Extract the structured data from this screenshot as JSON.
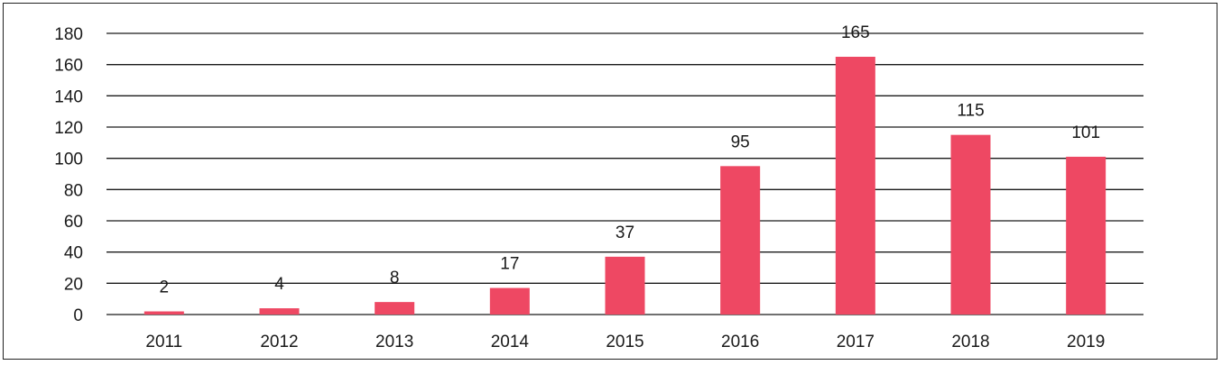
{
  "chart_data": {
    "type": "bar",
    "title": "",
    "xlabel": "",
    "ylabel": "",
    "categories": [
      "2011",
      "2012",
      "2013",
      "2014",
      "2015",
      "2016",
      "2017",
      "2018",
      "2019"
    ],
    "values": [
      2,
      4,
      8,
      17,
      37,
      95,
      165,
      115,
      101
    ],
    "data_labels": [
      "2",
      "4",
      "8",
      "17",
      "37",
      "95",
      "165",
      "115",
      "101"
    ],
    "y_ticks": [
      "0",
      "20",
      "40",
      "60",
      "80",
      "100",
      "120",
      "140",
      "160",
      "180"
    ],
    "ylim": [
      0,
      180
    ],
    "grid": true,
    "legend": "none",
    "bar_color": "#ee4863",
    "grid_color": "#1a1a1a"
  }
}
